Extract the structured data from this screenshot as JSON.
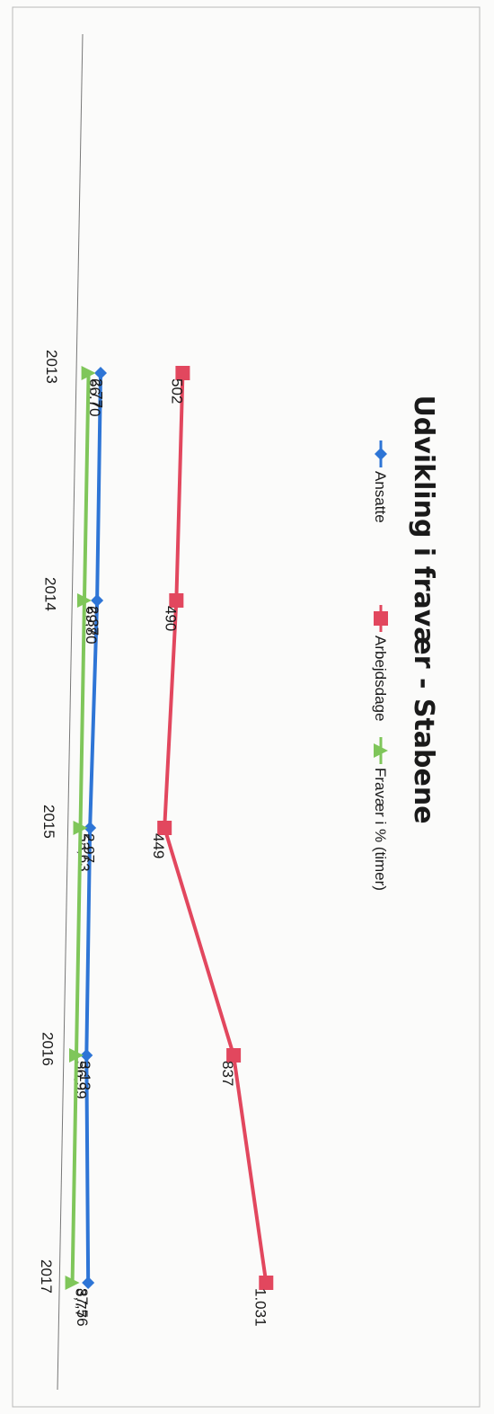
{
  "chart_data": {
    "type": "line",
    "title": "Udvikling i fravær - Stabene",
    "categories": [
      "2013",
      "2014",
      "2015",
      "2016",
      "2017"
    ],
    "series": [
      {
        "name": "Ansatte",
        "values": [
          66.7,
          69.8,
          53.63,
          56.99,
          87.56
        ],
        "labels": [
          "66,70",
          "69,80",
          "53,63",
          "56,99",
          "87,56"
        ],
        "color": "#2e75d6",
        "marker": "diamond"
      },
      {
        "name": "Arbejdsdage",
        "values": [
          502,
          490,
          449,
          837,
          1031
        ],
        "labels": [
          "502",
          "490",
          "449",
          "837",
          "1.031"
        ],
        "color": "#e2475e",
        "marker": "square"
      },
      {
        "name": "Fravær i % (timer)",
        "values": [
          2.77,
          2.37,
          2.97,
          3.13,
          3.77
        ],
        "labels": [
          "2,77",
          "2,37",
          "2,97",
          "3,13",
          "3,77"
        ],
        "color": "#7fc65a",
        "marker": "triangle"
      }
    ],
    "ylim": [
      0,
      1200
    ],
    "grid": false,
    "legend": "top",
    "orientation": "rotated-90-clockwise"
  }
}
